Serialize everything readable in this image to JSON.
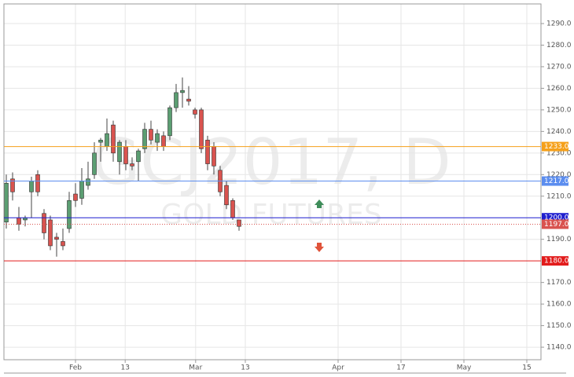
{
  "chart_data": {
    "type": "candlestick",
    "watermark_title": "GCJ2017, D",
    "watermark_subtitle": "GOLD FUTURES",
    "x": [
      0,
      1,
      2,
      3,
      4,
      5,
      6,
      7,
      8,
      9,
      10,
      11,
      12,
      13,
      14,
      15,
      16,
      17,
      18,
      19,
      20,
      21,
      22,
      23,
      24,
      25,
      26,
      27,
      28,
      29,
      30,
      31,
      32,
      33,
      34,
      35,
      36,
      37
    ],
    "open": [
      1198,
      1218,
      1200,
      1199,
      1212,
      1220,
      1202,
      1199,
      1191,
      1189,
      1195,
      1211,
      1209,
      1215,
      1220,
      1235,
      1233,
      1243,
      1226,
      1233,
      1225,
      1226,
      1232,
      1241,
      1235,
      1238,
      1238,
      1251,
      1258,
      1255,
      1250,
      1250,
      1236,
      1233,
      1222,
      1215,
      1208,
      1199
    ],
    "high": [
      1220,
      1221,
      1205,
      1201,
      1219,
      1222,
      1204,
      1201,
      1193,
      1195,
      1212,
      1216,
      1223,
      1226,
      1235,
      1237,
      1246,
      1245,
      1236,
      1236,
      1228,
      1232,
      1244,
      1245,
      1241,
      1240,
      1252,
      1262,
      1265,
      1261,
      1251,
      1251,
      1238,
      1235,
      1224,
      1217,
      1209,
      1199
    ],
    "low": [
      1195,
      1208,
      1194,
      1196,
      1200,
      1210,
      1190,
      1185,
      1182,
      1185,
      1193,
      1205,
      1206,
      1213,
      1218,
      1226,
      1231,
      1226,
      1220,
      1222,
      1222,
      1217,
      1230,
      1234,
      1231,
      1231,
      1236,
      1249,
      1251,
      1252,
      1246,
      1230,
      1222,
      1220,
      1210,
      1204,
      1199,
      1194
    ],
    "close": [
      1216,
      1212,
      1197,
      1200,
      1217,
      1212,
      1193,
      1187,
      1190,
      1187,
      1208,
      1208,
      1217,
      1218,
      1230,
      1236,
      1239,
      1230,
      1235,
      1225,
      1224,
      1231,
      1241,
      1236,
      1239,
      1233,
      1251,
      1258,
      1259,
      1254,
      1248,
      1232,
      1225,
      1224,
      1212,
      1206,
      1200,
      1196
    ],
    "up_color": "#5b9e72",
    "down_color": "#d9534f",
    "xlim": [
      -0.375,
      85
    ],
    "xticks": [
      {
        "value": 11,
        "label": "Feb"
      },
      {
        "value": 18.9,
        "label": "13"
      },
      {
        "value": 30.1,
        "label": "Mar"
      },
      {
        "value": 38,
        "label": "13"
      },
      {
        "value": 52.75,
        "label": "Apr"
      },
      {
        "value": 62.75,
        "label": "17"
      },
      {
        "value": 72.75,
        "label": "May"
      },
      {
        "value": 82.75,
        "label": "15"
      }
    ],
    "ylim": [
      1134.2,
      1299.1
    ],
    "yticks": [
      {
        "value": 1140,
        "label": "1140.0"
      },
      {
        "value": 1150,
        "label": "1150.0"
      },
      {
        "value": 1160,
        "label": "1160.0"
      },
      {
        "value": 1170,
        "label": "1170.0"
      },
      {
        "value": 1190,
        "label": "1190.0"
      },
      {
        "value": 1210,
        "label": "1210.0"
      },
      {
        "value": 1220,
        "label": "1220.0"
      },
      {
        "value": 1230,
        "label": "1230.0"
      },
      {
        "value": 1240,
        "label": "1240.0"
      },
      {
        "value": 1250,
        "label": "1250.0"
      },
      {
        "value": 1260,
        "label": "1260.0"
      },
      {
        "value": 1270,
        "label": "1270.0"
      },
      {
        "value": 1280,
        "label": "1280.0"
      },
      {
        "value": 1290,
        "label": "1290.0"
      }
    ],
    "grid": true,
    "levels": [
      {
        "value": 1233,
        "label": "1233.0",
        "color": "#f5a01a",
        "style": "solid"
      },
      {
        "value": 1217,
        "label": "1217.0",
        "color": "#5b8def",
        "style": "solid"
      },
      {
        "value": 1200,
        "label": "1200.0",
        "color": "#1f1fcf",
        "style": "solid"
      },
      {
        "value": 1197,
        "label": "1197.0",
        "color": "#d9534f",
        "style": "dotted"
      },
      {
        "value": 1180,
        "label": "1180.0",
        "color": "#e21b1b",
        "style": "solid"
      }
    ]
  }
}
